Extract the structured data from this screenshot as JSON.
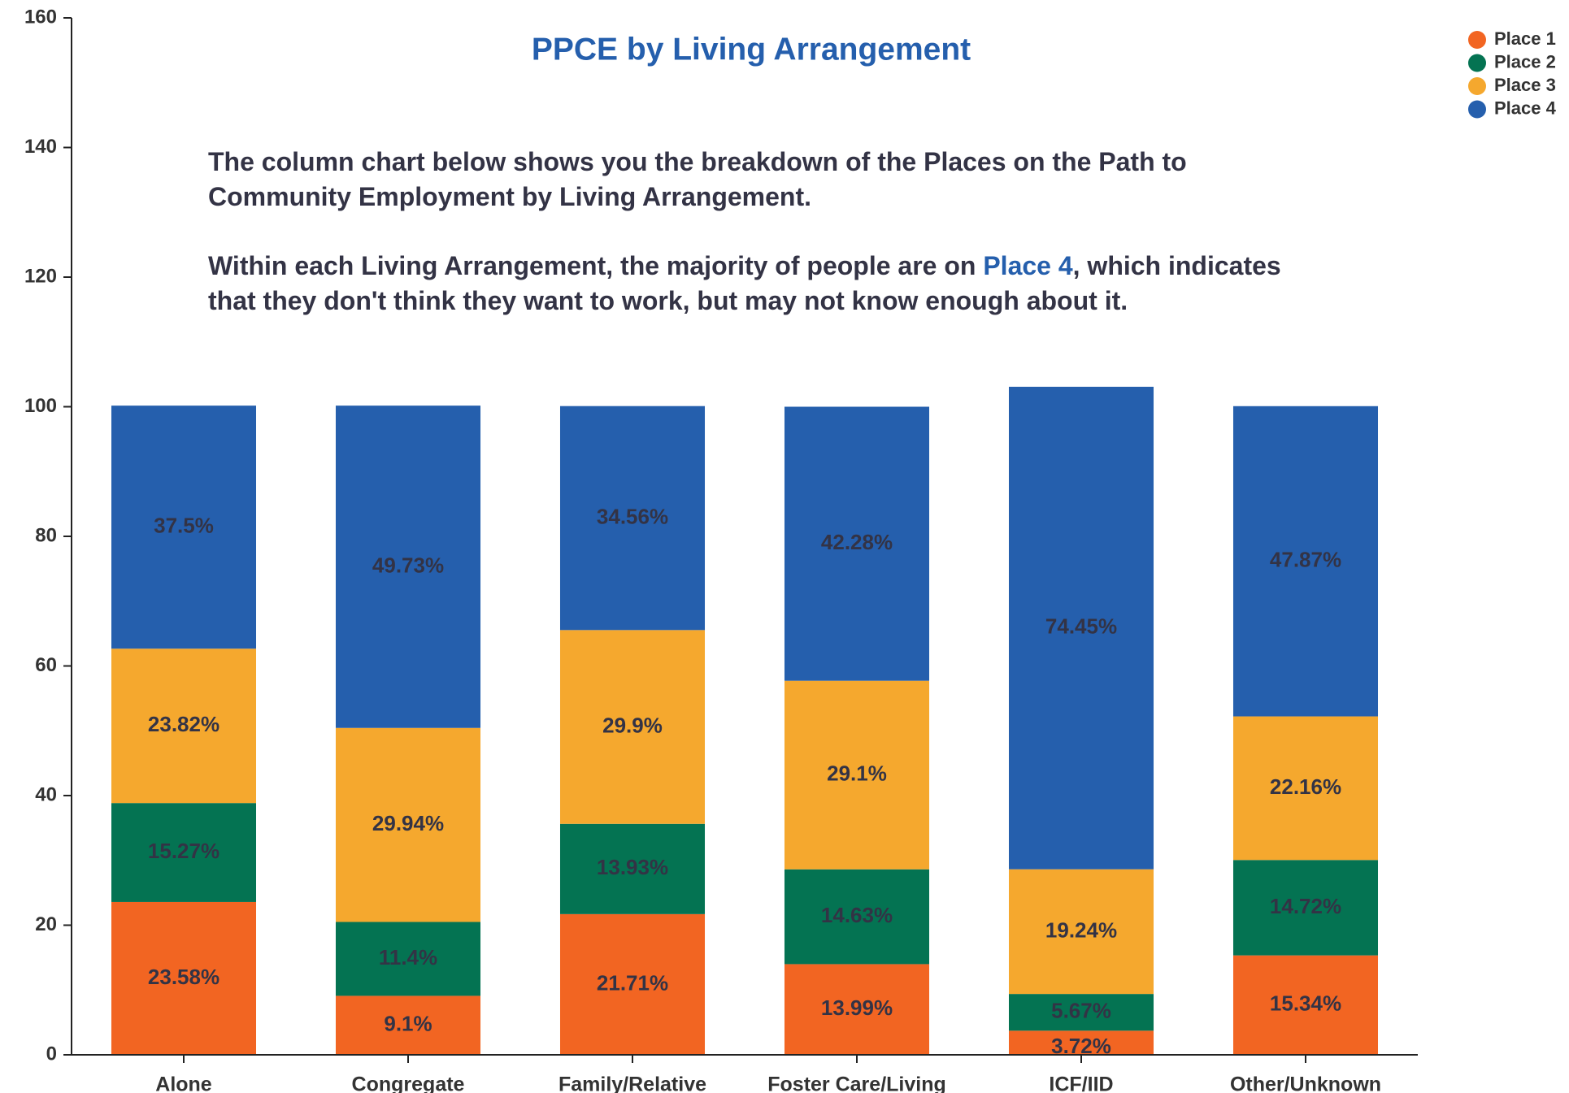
{
  "chart_data": {
    "type": "stacked_bar",
    "title": "PPCE by Living Arrangement",
    "annotation": {
      "paragraph1": "The column chart below shows you the breakdown of the Places on the Path to Community Employment by Living Arrangement.",
      "paragraph2_before": "Within each Living Arrangement, the majority of people are on ",
      "paragraph2_highlight": "Place 4",
      "paragraph2_after": ", which indicates that they don't think they want to work, but may not know enough about it."
    },
    "categories": [
      "Alone",
      "Congregate",
      "Family/Relative",
      "Foster Care/Living",
      "ICF/IID",
      "Other/Unknown"
    ],
    "series": [
      {
        "name": "Place 1",
        "color": "#f26522",
        "values": [
          23.58,
          9.1,
          21.71,
          13.99,
          3.72,
          15.34
        ],
        "value_labels": [
          "23.58%",
          "9.1%",
          "21.71%",
          "13.99%",
          "3.72%",
          "15.34%"
        ]
      },
      {
        "name": "Place 2",
        "color": "#047352",
        "values": [
          15.27,
          11.4,
          13.93,
          14.63,
          5.67,
          14.72
        ],
        "value_labels": [
          "15.27%",
          "11.4%",
          "13.93%",
          "14.63%",
          "5.67%",
          "14.72%"
        ]
      },
      {
        "name": "Place 3",
        "color": "#f5a82e",
        "values": [
          23.82,
          29.94,
          29.9,
          29.1,
          19.24,
          22.16
        ],
        "value_labels": [
          "23.82%",
          "29.94%",
          "29.9%",
          "29.1%",
          "19.24%",
          "22.16%"
        ]
      },
      {
        "name": "Place 4",
        "color": "#255fad",
        "values": [
          37.5,
          49.73,
          34.56,
          42.28,
          74.45,
          47.87
        ],
        "value_labels": [
          "37.5%",
          "49.73%",
          "34.56%",
          "42.28%",
          "74.45%",
          "47.87%"
        ]
      }
    ],
    "ylim": [
      0,
      160
    ],
    "yticks": [
      0,
      20,
      40,
      60,
      80,
      100,
      120,
      140,
      160
    ],
    "legend": "top-right"
  }
}
